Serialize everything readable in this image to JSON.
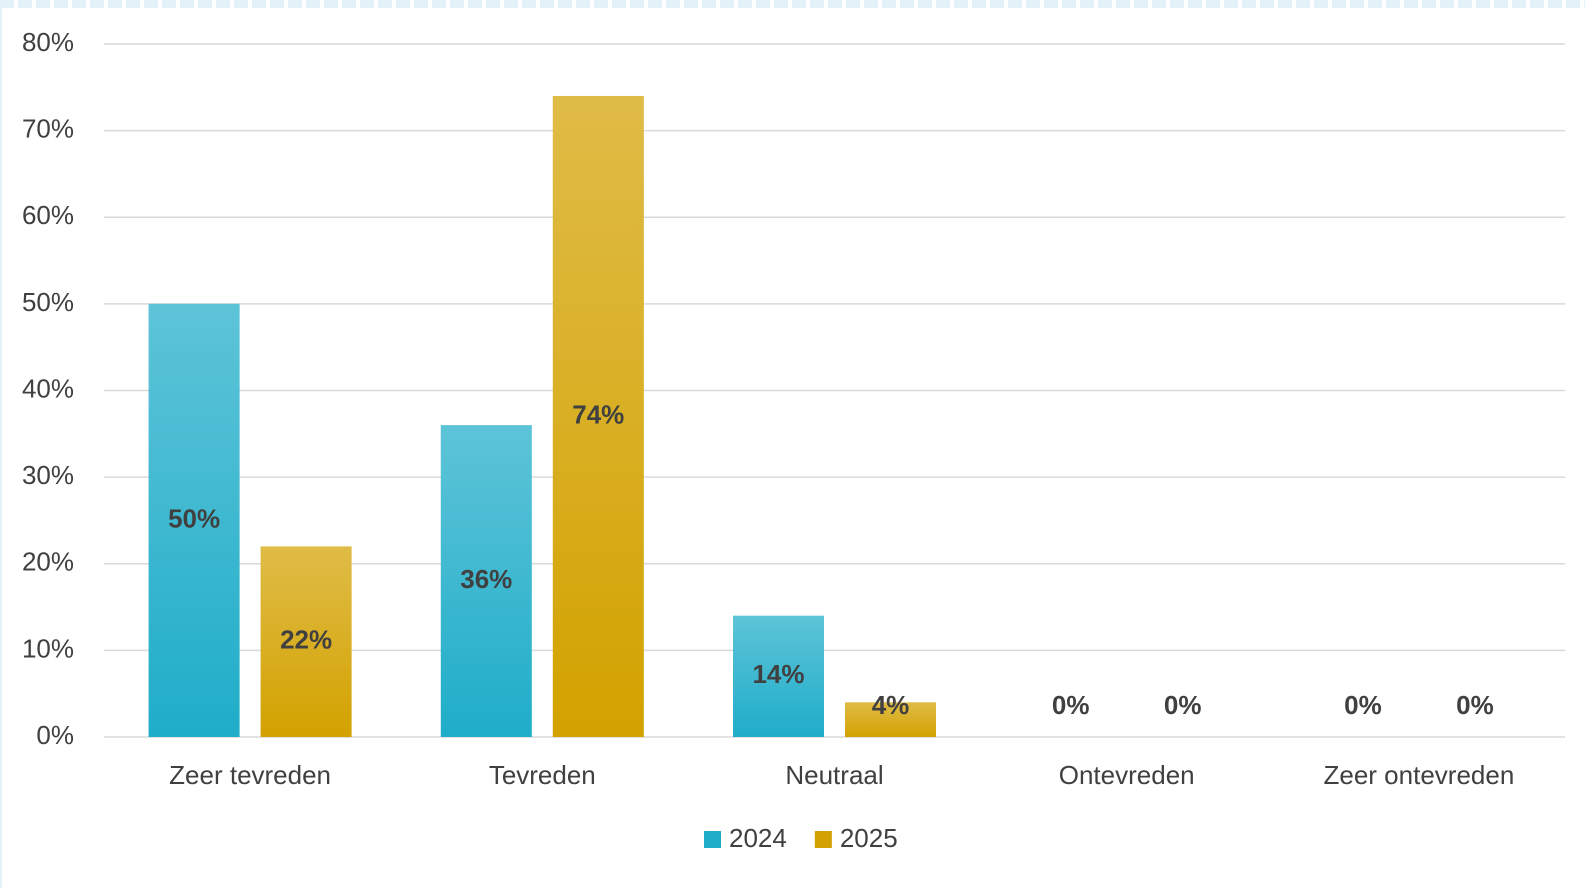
{
  "chart_data": {
    "type": "bar",
    "categories": [
      "Zeer tevreden",
      "Tevreden",
      "Neutraal",
      "Ontevreden",
      "Zeer ontevreden"
    ],
    "series": [
      {
        "name": "2024",
        "color": "#1fadc9",
        "values": [
          50,
          36,
          14,
          0,
          0
        ],
        "value_labels": [
          "50%",
          "36%",
          "14%",
          "0%",
          "0%"
        ]
      },
      {
        "name": "2025",
        "color": "#d3a200",
        "values": [
          22,
          74,
          4,
          0,
          0
        ],
        "value_labels": [
          "22%",
          "74%",
          "4%",
          "0%",
          "0%"
        ]
      }
    ],
    "ylim": [
      0,
      80
    ],
    "yticks": [
      {
        "value": 0,
        "label": "0%"
      },
      {
        "value": 10,
        "label": "10%"
      },
      {
        "value": 20,
        "label": "20%"
      },
      {
        "value": 30,
        "label": "30%"
      },
      {
        "value": 40,
        "label": "40%"
      },
      {
        "value": 50,
        "label": "50%"
      },
      {
        "value": 60,
        "label": "60%"
      },
      {
        "value": 70,
        "label": "70%"
      },
      {
        "value": 80,
        "label": "80%"
      }
    ],
    "grid": true,
    "legend": "bottom"
  }
}
